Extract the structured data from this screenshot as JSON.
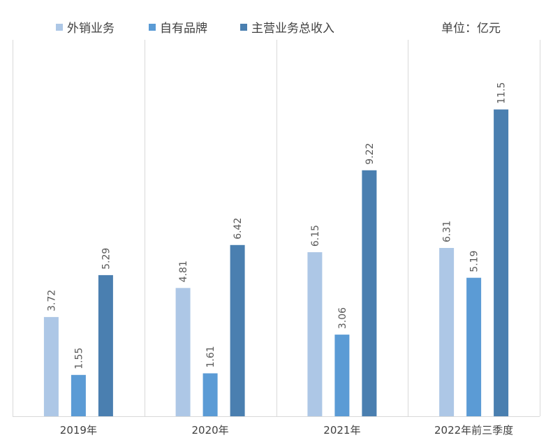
{
  "chart_data": {
    "type": "bar",
    "title": "",
    "unit": "单位：亿元",
    "categories": [
      "2019年",
      "2020年",
      "2021年",
      "2022年前三季度"
    ],
    "series": [
      {
        "name": "外销业务",
        "color": "#adc7e6",
        "values": [
          3.72,
          4.81,
          6.15,
          6.31
        ]
      },
      {
        "name": "自有品牌",
        "color": "#5b9bd5",
        "values": [
          1.55,
          1.61,
          3.06,
          5.19
        ]
      },
      {
        "name": "主营业务总收入",
        "color": "#4a7fb0",
        "values": [
          5.29,
          6.42,
          9.22,
          11.5
        ]
      }
    ],
    "value_labels": [
      [
        "3.72",
        "1.55",
        "5.29"
      ],
      [
        "4.81",
        "1.61",
        "6.42"
      ],
      [
        "6.15",
        "3.06",
        "9.22"
      ],
      [
        "6.31",
        "5.19",
        "11.5"
      ]
    ],
    "ylim": [
      0,
      12.5
    ],
    "xlabel": "",
    "ylabel": "",
    "legend_position": "top",
    "grid": false
  }
}
